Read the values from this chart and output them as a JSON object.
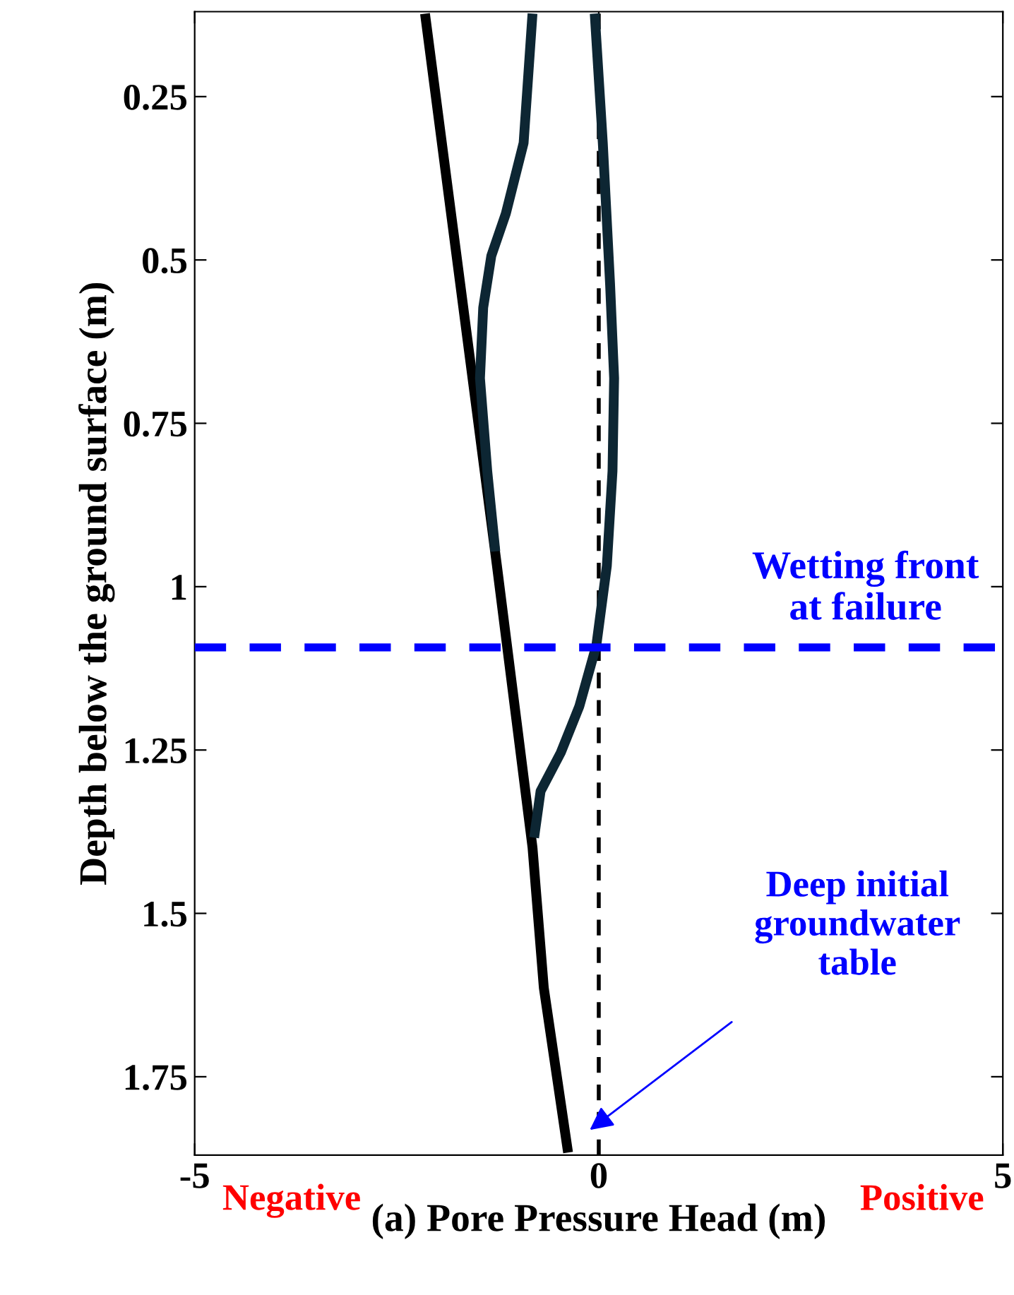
{
  "chart_data": {
    "type": "line",
    "xlabel": "(a) Pore Pressure Head (m)",
    "ylabel": "Depth below the ground surface (m)",
    "xlim": [
      -5,
      5
    ],
    "xticks": [
      -5,
      0,
      5
    ],
    "ylim": [
      1.87,
      0.12
    ],
    "yticks": [
      0.25,
      0.5,
      0.75,
      1,
      1.25,
      1.5,
      1.75
    ],
    "grid": false,
    "marker": "none",
    "line_style": "solid",
    "series": [
      {
        "color": "#000000",
        "x": [
          -2.15,
          -1.26,
          -0.82,
          -0.68,
          -0.38
        ],
        "values": [
          0.123,
          0.968,
          1.399,
          1.614,
          1.866
        ]
      },
      {
        "color": "#0d2633",
        "x": [
          -0.82,
          -0.93,
          -1.15,
          -1.33,
          -1.43,
          -1.47,
          -1.38,
          -1.28
        ],
        "values": [
          0.123,
          0.321,
          0.429,
          0.494,
          0.573,
          0.681,
          0.823,
          0.946
        ]
      },
      {
        "color": "#0d2633",
        "x": [
          -0.05,
          0.05,
          0.14,
          0.19,
          0.17,
          0.1,
          -0.03,
          -0.24,
          -0.47,
          -0.72,
          -0.8
        ],
        "values": [
          0.123,
          0.321,
          0.537,
          0.681,
          0.823,
          0.968,
          1.09,
          1.183,
          1.254,
          1.313,
          1.384
        ]
      }
    ],
    "ref_lines": [
      {
        "axis": "x",
        "value": 0,
        "color": "#000000",
        "line_style": "dashed"
      },
      {
        "axis": "y",
        "value": 1.093,
        "label": "Wetting front\nat failure",
        "color": "#0000ff",
        "line_style": "dashed"
      }
    ],
    "annotations": [
      "Negative",
      "Positive",
      "Deep initial\ngroundwater\ntable"
    ]
  }
}
